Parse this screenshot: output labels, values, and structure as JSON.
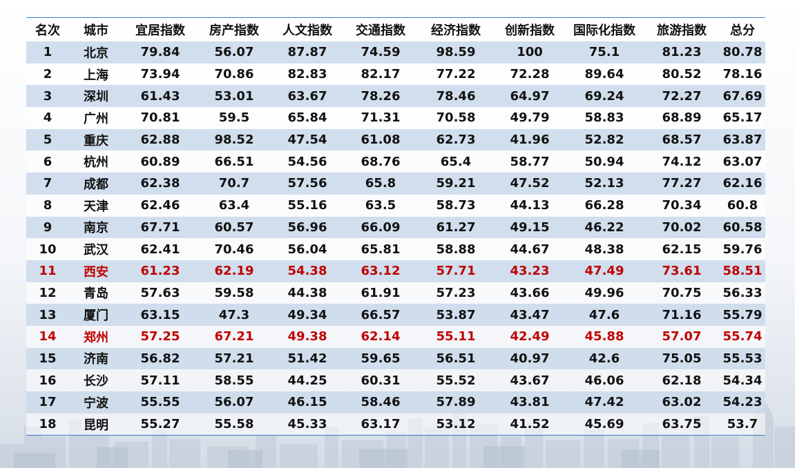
{
  "table": {
    "headers": [
      "名次",
      "城市",
      "宜居指数",
      "房产指数",
      "人文指数",
      "交通指数",
      "经济指数",
      "创新指数",
      "国际化指数",
      "旅游指数",
      "总分"
    ],
    "highlight_color": "#c00000",
    "rows": [
      {
        "rank": "1",
        "city": "北京",
        "values": [
          "79.84",
          "56.07",
          "87.87",
          "74.59",
          "98.59",
          "100",
          "75.1",
          "81.23",
          "80.78"
        ],
        "highlight": false
      },
      {
        "rank": "2",
        "city": "上海",
        "values": [
          "73.94",
          "70.86",
          "82.83",
          "82.17",
          "77.22",
          "72.28",
          "89.64",
          "80.52",
          "78.16"
        ],
        "highlight": false
      },
      {
        "rank": "3",
        "city": "深圳",
        "values": [
          "61.43",
          "53.01",
          "63.67",
          "78.26",
          "78.46",
          "64.97",
          "69.24",
          "72.27",
          "67.69"
        ],
        "highlight": false
      },
      {
        "rank": "4",
        "city": "广州",
        "values": [
          "70.81",
          "59.5",
          "65.84",
          "71.31",
          "70.58",
          "49.79",
          "58.83",
          "68.89",
          "65.17"
        ],
        "highlight": false
      },
      {
        "rank": "5",
        "city": "重庆",
        "values": [
          "62.88",
          "98.52",
          "47.54",
          "61.08",
          "62.73",
          "41.96",
          "52.82",
          "68.57",
          "63.87"
        ],
        "highlight": false
      },
      {
        "rank": "6",
        "city": "杭州",
        "values": [
          "60.89",
          "66.51",
          "54.56",
          "68.76",
          "65.4",
          "58.77",
          "50.94",
          "74.12",
          "63.07"
        ],
        "highlight": false
      },
      {
        "rank": "7",
        "city": "成都",
        "values": [
          "62.38",
          "70.7",
          "57.56",
          "65.8",
          "59.21",
          "47.52",
          "52.13",
          "77.27",
          "62.16"
        ],
        "highlight": false
      },
      {
        "rank": "8",
        "city": "天津",
        "values": [
          "62.46",
          "63.4",
          "55.16",
          "63.5",
          "58.73",
          "44.13",
          "66.28",
          "70.34",
          "60.8"
        ],
        "highlight": false
      },
      {
        "rank": "9",
        "city": "南京",
        "values": [
          "67.71",
          "60.57",
          "56.96",
          "66.09",
          "61.27",
          "49.15",
          "46.22",
          "70.02",
          "60.58"
        ],
        "highlight": false
      },
      {
        "rank": "10",
        "city": "武汉",
        "values": [
          "62.41",
          "70.46",
          "56.04",
          "65.81",
          "58.88",
          "44.67",
          "48.38",
          "62.15",
          "59.76"
        ],
        "highlight": false
      },
      {
        "rank": "11",
        "city": "西安",
        "values": [
          "61.23",
          "62.19",
          "54.38",
          "63.12",
          "57.71",
          "43.23",
          "47.49",
          "73.61",
          "58.51"
        ],
        "highlight": true
      },
      {
        "rank": "12",
        "city": "青岛",
        "values": [
          "57.63",
          "59.58",
          "44.38",
          "61.91",
          "57.23",
          "43.66",
          "49.96",
          "70.75",
          "56.33"
        ],
        "highlight": false
      },
      {
        "rank": "13",
        "city": "厦门",
        "values": [
          "63.15",
          "47.3",
          "49.34",
          "66.57",
          "53.87",
          "43.47",
          "47.6",
          "71.16",
          "55.79"
        ],
        "highlight": false
      },
      {
        "rank": "14",
        "city": "郑州",
        "values": [
          "57.25",
          "67.21",
          "49.38",
          "62.14",
          "55.11",
          "42.49",
          "45.88",
          "57.07",
          "55.74"
        ],
        "highlight": true
      },
      {
        "rank": "15",
        "city": "济南",
        "values": [
          "56.82",
          "57.21",
          "51.42",
          "59.65",
          "56.51",
          "40.97",
          "42.6",
          "75.05",
          "55.53"
        ],
        "highlight": false
      },
      {
        "rank": "16",
        "city": "长沙",
        "values": [
          "57.11",
          "58.55",
          "44.25",
          "60.31",
          "55.52",
          "43.67",
          "46.06",
          "62.18",
          "54.34"
        ],
        "highlight": false
      },
      {
        "rank": "17",
        "city": "宁波",
        "values": [
          "55.55",
          "56.07",
          "46.15",
          "58.46",
          "57.89",
          "43.81",
          "47.42",
          "63.02",
          "54.23"
        ],
        "highlight": false
      },
      {
        "rank": "18",
        "city": "昆明",
        "values": [
          "55.27",
          "55.58",
          "45.33",
          "63.17",
          "53.12",
          "41.52",
          "45.69",
          "63.75",
          "53.7"
        ],
        "highlight": false
      }
    ]
  }
}
